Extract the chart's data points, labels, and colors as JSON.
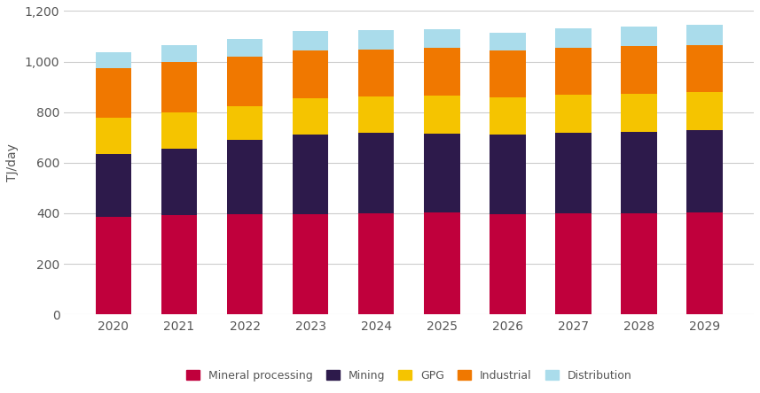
{
  "years": [
    2020,
    2021,
    2022,
    2023,
    2024,
    2025,
    2026,
    2027,
    2028,
    2029
  ],
  "mineral_processing": [
    385,
    393,
    398,
    398,
    400,
    402,
    398,
    400,
    400,
    402
  ],
  "mining": [
    248,
    262,
    292,
    312,
    318,
    312,
    312,
    318,
    322,
    328
  ],
  "gpg": [
    145,
    145,
    135,
    145,
    145,
    150,
    148,
    150,
    150,
    150
  ],
  "industrial": [
    195,
    200,
    195,
    190,
    185,
    190,
    185,
    188,
    188,
    185
  ],
  "distribution": [
    65,
    65,
    70,
    75,
    75,
    75,
    70,
    75,
    80,
    80
  ],
  "colors": {
    "mineral_processing": "#c0003c",
    "mining": "#2d1a4b",
    "gpg": "#f5c400",
    "industrial": "#f07800",
    "distribution": "#aadceb"
  },
  "ylabel": "TJ/day",
  "ylim": [
    0,
    1200
  ],
  "yticks": [
    0,
    200,
    400,
    600,
    800,
    1000,
    1200
  ],
  "legend_labels": [
    "Mineral processing",
    "Mining",
    "GPG",
    "Industrial",
    "Distribution"
  ],
  "background_color": "#ffffff",
  "bar_width": 0.55,
  "figwidth": 8.57,
  "figheight": 4.44,
  "dpi": 100
}
